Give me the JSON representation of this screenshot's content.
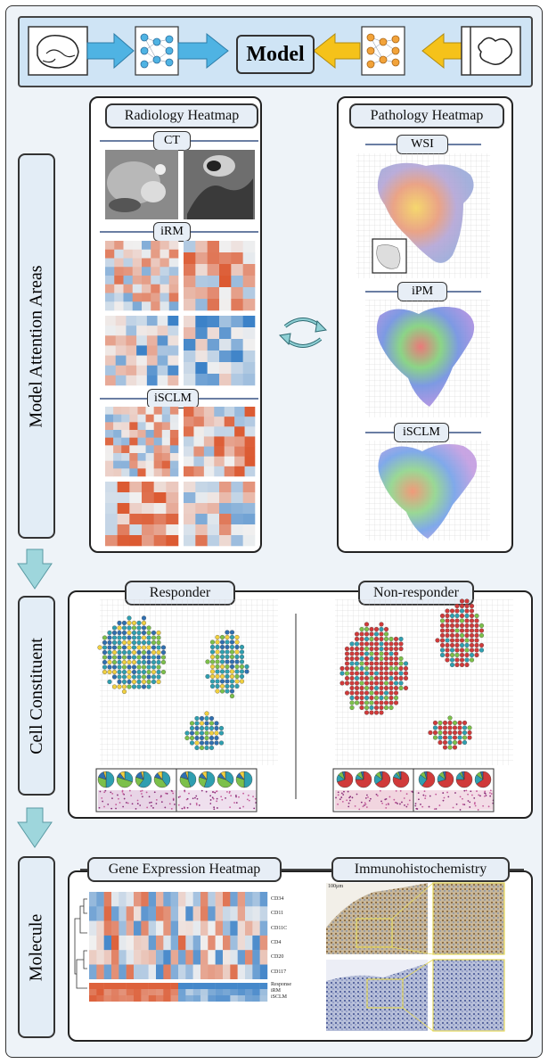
{
  "header": {
    "model_label": "Model"
  },
  "sections": {
    "attention": {
      "label": "Model Attention Areas"
    },
    "cell": {
      "label": "Cell Constituent"
    },
    "molecule": {
      "label": "Molecule"
    }
  },
  "radiology": {
    "title": "Radiology Heatmap",
    "sub": [
      "CT",
      "iRM",
      "iSCLM"
    ]
  },
  "pathology": {
    "title": "Pathology Heatmap",
    "sub": [
      "WSI",
      "iPM",
      "iSCLM"
    ]
  },
  "cells": {
    "responder": "Responder",
    "non_responder": "Non-responder"
  },
  "gene": {
    "title": "Gene Expression Heatmap",
    "rows": [
      "CD34",
      "CD11",
      "CD11C",
      "CD4",
      "CD20",
      "CD117"
    ],
    "annotations": [
      "Response",
      "iRM",
      "iSCLM"
    ]
  },
  "ihc": {
    "title": "Immunohistochemistry",
    "scale": "100µm"
  },
  "colors": {
    "blue_arrow": "#4fb3e3",
    "yellow_arrow": "#f5c21a",
    "teal_arrow": "#9ed6dc",
    "heat_red": "#d9482f",
    "heat_blue": "#3b7fbf"
  }
}
